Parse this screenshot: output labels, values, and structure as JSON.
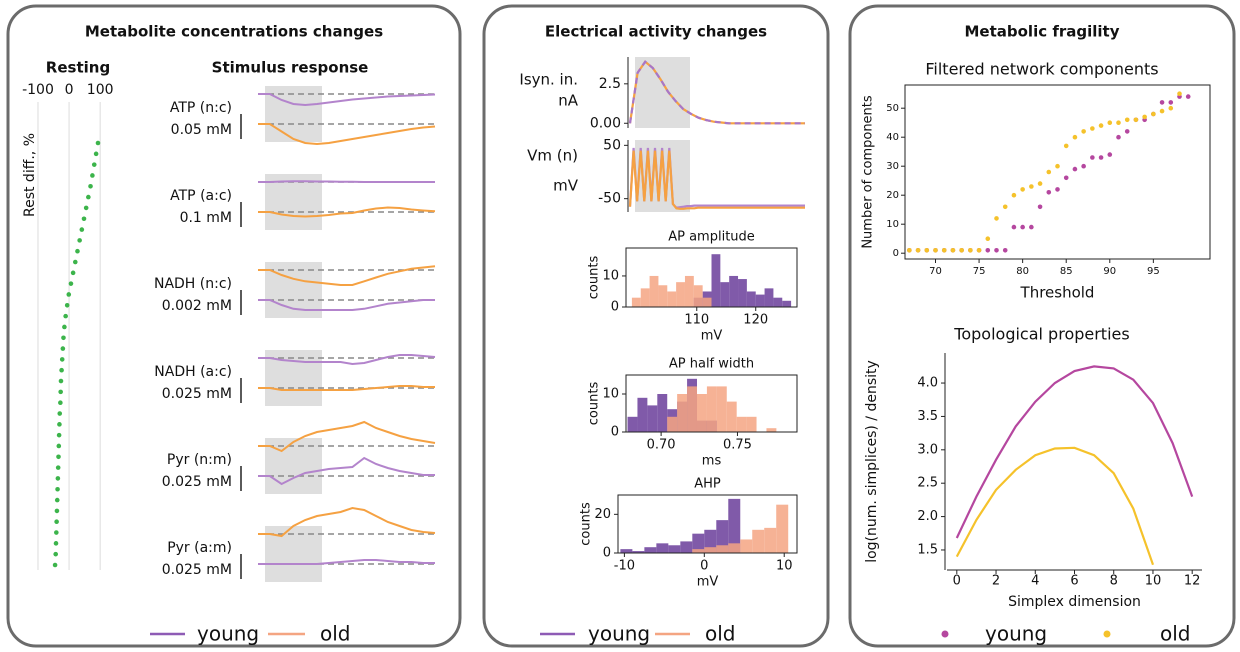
{
  "panels": [
    {
      "title": "Metabolite concentrations changes",
      "subtitle": "Stimulus response",
      "legend": [
        {
          "name": "young",
          "color": "#8e5bb5"
        },
        {
          "name": "old",
          "color": "#f4a582"
        }
      ]
    },
    {
      "title": "Electrical activity changes",
      "legend": [
        {
          "name": "young",
          "color": "#8e5bb5"
        },
        {
          "name": "old",
          "color": "#f4a582"
        }
      ]
    },
    {
      "title": "Metabolic fragility",
      "legend": [
        {
          "name": "young",
          "color": "#b5479f"
        },
        {
          "name": "old",
          "color": "#f5c22b"
        }
      ]
    }
  ],
  "chart_data": [
    {
      "type": "dot",
      "title": "Resting",
      "ylabel": "Rest diff., %",
      "color": "#3cb44b",
      "grid": true,
      "xlim": [
        -116,
        122
      ],
      "xticks": [
        -100,
        0,
        100
      ],
      "values": [
        93,
        87,
        81,
        75,
        69,
        62,
        55,
        48,
        41,
        34,
        27,
        20,
        13,
        6,
        -1,
        -6,
        -11,
        -15,
        -18,
        -20,
        -22,
        -24,
        -26,
        -27,
        -28,
        -30,
        -31,
        -32,
        -33,
        -34,
        -35,
        -36,
        -37,
        -38,
        -39,
        -40,
        -41,
        -42,
        -43,
        -45
      ]
    },
    {
      "type": "trace",
      "label": "ATP (n:c)",
      "scalebar": {
        "value": 0.05,
        "label": "0.05 mM"
      },
      "series": [
        {
          "color": "#b384cc",
          "values": [
            0,
            0,
            -0.012,
            -0.02,
            -0.022,
            -0.02,
            -0.017,
            -0.014,
            -0.011,
            -0.009,
            -0.007,
            -0.005,
            -0.004,
            -0.003,
            -0.002,
            -0.001
          ]
        },
        {
          "color": "#f5a142",
          "values": [
            0,
            0,
            -0.015,
            -0.03,
            -0.038,
            -0.04,
            -0.038,
            -0.034,
            -0.03,
            -0.026,
            -0.022,
            -0.018,
            -0.014,
            -0.01,
            -0.007,
            -0.005
          ]
        }
      ]
    },
    {
      "type": "trace",
      "label": "ATP (a:c)",
      "scalebar": {
        "value": 0.1,
        "label": "0.1 mM"
      },
      "series": [
        {
          "color": "#b384cc",
          "values": [
            0,
            0,
            0.002,
            0.003,
            0.003,
            0.002,
            0.002,
            0.001,
            0.001,
            0,
            0,
            0,
            0,
            0,
            0,
            0
          ]
        },
        {
          "color": "#f5a142",
          "values": [
            0,
            0,
            -0.01,
            -0.016,
            -0.018,
            -0.016,
            -0.012,
            -0.006,
            -0.004,
            0.006,
            0.014,
            0.018,
            0.016,
            0.01,
            0.006,
            0.003
          ]
        }
      ]
    },
    {
      "type": "trace",
      "label": "NADH (n:c)",
      "scalebar": {
        "value": 0.002,
        "label": "0.002 mM"
      },
      "series": [
        {
          "color": "#f5a142",
          "values": [
            0,
            0,
            -0.0004,
            -0.0007,
            -0.0009,
            -0.001,
            -0.0011,
            -0.0012,
            -0.0012,
            -0.0009,
            -0.0006,
            -0.0003,
            -0.0001,
            0.0001,
            0.0002,
            0.0003
          ]
        },
        {
          "color": "#b384cc",
          "values": [
            0,
            0,
            -0.0004,
            -0.0007,
            -0.0008,
            -0.0008,
            -0.0008,
            -0.0008,
            -0.0008,
            -0.0007,
            -0.0005,
            -0.0003,
            -0.0002,
            -0.0001,
            0,
            0
          ]
        }
      ]
    },
    {
      "type": "trace",
      "label": "NADH (a:c)",
      "scalebar": {
        "value": 0.025,
        "label": "0.025 mM"
      },
      "series": [
        {
          "color": "#b384cc",
          "values": [
            0,
            0,
            -0.002,
            -0.003,
            -0.004,
            -0.004,
            -0.004,
            -0.004,
            -0.006,
            -0.005,
            -0.002,
            0.001,
            0.003,
            0.003,
            0.002,
            0.001
          ]
        },
        {
          "color": "#f5a142",
          "values": [
            0,
            0,
            -0.002,
            -0.002,
            -0.002,
            -0.002,
            -0.002,
            -0.002,
            -0.002,
            -0.001,
            0,
            0.001,
            0.002,
            0.002,
            0.001,
            0.001
          ]
        }
      ]
    },
    {
      "type": "trace",
      "label": "Pyr (n:m)",
      "scalebar": {
        "value": 0.025,
        "label": "0.025 mM"
      },
      "series": [
        {
          "color": "#f5a142",
          "values": [
            0,
            0,
            -0.005,
            0.004,
            0.01,
            0.014,
            0.016,
            0.018,
            0.02,
            0.024,
            0.018,
            0.014,
            0.01,
            0.007,
            0.005,
            0.003
          ]
        },
        {
          "color": "#b384cc",
          "values": [
            0,
            0,
            -0.008,
            -0.002,
            0.003,
            0.005,
            0.007,
            0.008,
            0.009,
            0.018,
            0.012,
            0.008,
            0.005,
            0.003,
            0.001,
            0.001
          ]
        }
      ]
    },
    {
      "type": "trace",
      "label": "Pyr (a:m)",
      "scalebar": {
        "value": 0.025,
        "label": "0.025 mM"
      },
      "series": [
        {
          "color": "#f5a142",
          "values": [
            0,
            0,
            -0.002,
            0.008,
            0.014,
            0.018,
            0.02,
            0.022,
            0.026,
            0.024,
            0.018,
            0.012,
            0.008,
            0.004,
            0.002,
            0.001
          ]
        },
        {
          "color": "#b384cc",
          "values": [
            0,
            0,
            0,
            0,
            0,
            0,
            0.001,
            0.002,
            0.003,
            0.004,
            0.004,
            0.003,
            0.002,
            0.002,
            0.001,
            0.001
          ]
        }
      ]
    },
    {
      "type": "line",
      "ylabel": [
        "Isyn. in.",
        "nA"
      ],
      "ylim": [
        -0.3,
        4.2
      ],
      "yticks": [
        {
          "value": 0,
          "label": "0.00"
        },
        2.5
      ],
      "series": [
        {
          "color": "#f5a142",
          "values": [
            0,
            3.2,
            3.9,
            3.5,
            2.8,
            2.0,
            1.4,
            0.9,
            0.6,
            0.35,
            0.2,
            0.1,
            0.05,
            0,
            0,
            0,
            0,
            0,
            0,
            0,
            0,
            0,
            0,
            0
          ]
        },
        {
          "color": "#a876c8",
          "dash": true,
          "values": [
            0,
            3.2,
            3.9,
            3.5,
            2.8,
            2.0,
            1.4,
            0.9,
            0.6,
            0.35,
            0.2,
            0.1,
            0.05,
            0,
            0,
            0,
            0,
            0,
            0,
            0,
            0,
            0,
            0,
            0
          ]
        }
      ]
    },
    {
      "type": "line",
      "ylabel": [
        "Vm (n)",
        "mV"
      ],
      "ylim": [
        -75,
        60
      ],
      "yticks": [
        50,
        -50
      ],
      "series": [
        {
          "color": "#b384cc",
          "values": [
            -65,
            45,
            -55,
            45,
            -55,
            45,
            -55,
            45,
            -55,
            45,
            -55,
            45,
            -60,
            -67,
            -66,
            -65,
            -64,
            -64,
            -63,
            -63,
            -63,
            -63,
            -63,
            -63,
            -63,
            -63,
            -63,
            -63,
            -63,
            -63,
            -63,
            -63,
            -63,
            -63,
            -63,
            -63,
            -63,
            -63,
            -63,
            -63,
            -63,
            -63,
            -63,
            -63,
            -63,
            -63,
            -63,
            -63,
            -63,
            -63
          ]
        },
        {
          "color": "#f5a142",
          "values": [
            -65,
            40,
            -55,
            40,
            -55,
            40,
            -55,
            40,
            -55,
            40,
            -55,
            40,
            -60,
            -68,
            -69,
            -69,
            -68,
            -68,
            -68,
            -67,
            -67,
            -67,
            -67,
            -67,
            -67,
            -67,
            -67,
            -67,
            -67,
            -67,
            -67,
            -67,
            -67,
            -67,
            -67,
            -67,
            -67,
            -67,
            -67,
            -67,
            -67,
            -67,
            -67,
            -67,
            -67,
            -67,
            -67,
            -67,
            -67,
            -67
          ]
        }
      ]
    },
    {
      "type": "histogram",
      "title": "AP amplitude",
      "xlabel": "mV",
      "ylabel": "counts",
      "bins": [
        99,
        100.5,
        102,
        103.5,
        105,
        106.5,
        108,
        109.5,
        111,
        112.5,
        114,
        115.5,
        117,
        118.5,
        120,
        121.5,
        123,
        124.5,
        126
      ],
      "xlim": [
        98,
        127
      ],
      "xticks": [
        110,
        120
      ],
      "ylim": [
        0,
        19
      ],
      "yticks": [
        0,
        10
      ],
      "series": [
        {
          "color": "#6a3d9a",
          "values": [
            0,
            0,
            0,
            0,
            0,
            0,
            0,
            3,
            5,
            17,
            8,
            10,
            9,
            5,
            4,
            6,
            3,
            2
          ]
        },
        {
          "color": "#f4a582",
          "values": [
            3,
            6,
            10,
            7,
            5,
            8,
            10,
            7,
            3,
            0,
            0,
            0,
            0,
            0,
            0,
            0,
            0,
            0
          ]
        }
      ]
    },
    {
      "type": "histogram",
      "title": "AP half width",
      "xlabel": "ms",
      "ylabel": "counts",
      "bins": [
        0.678,
        0.6845,
        0.691,
        0.6975,
        0.704,
        0.7105,
        0.717,
        0.7235,
        0.73,
        0.7365,
        0.743,
        0.7495,
        0.756,
        0.7625,
        0.769,
        0.7755,
        0.782
      ],
      "xlim": [
        0.677,
        0.789
      ],
      "xticks": [
        {
          "value": 0.7,
          "label": "0.70"
        },
        0.75
      ],
      "ylim": [
        0,
        15
      ],
      "yticks": [
        0,
        10
      ],
      "series": [
        {
          "color": "#6a3d9a",
          "values": [
            4,
            9,
            7,
            10,
            6,
            8,
            14,
            3,
            3,
            0,
            0,
            0,
            0,
            0,
            0,
            0
          ]
        },
        {
          "color": "#f4a582",
          "values": [
            0,
            0,
            0,
            0,
            4,
            10,
            12,
            10,
            12,
            12,
            8,
            4,
            4,
            0,
            1,
            0
          ]
        }
      ]
    },
    {
      "type": "histogram",
      "title": "AHP",
      "xlabel": "mV",
      "ylabel": "counts",
      "bins": [
        -10.5,
        -9,
        -7.5,
        -6,
        -4.5,
        -3,
        -1.5,
        0,
        1.5,
        3,
        4.5,
        6,
        7.5,
        9,
        10.5
      ],
      "xlim": [
        -10.8,
        11.6
      ],
      "xticks": [
        -10,
        0,
        10
      ],
      "ylim": [
        0,
        30
      ],
      "yticks": [
        0,
        20
      ],
      "series": [
        {
          "color": "#6a3d9a",
          "values": [
            2,
            1,
            3,
            5,
            4,
            6,
            10,
            12,
            17,
            28,
            0,
            0,
            0,
            0
          ]
        },
        {
          "color": "#f4a582",
          "values": [
            0,
            0,
            0,
            0,
            0,
            0,
            2,
            3,
            4,
            5,
            7,
            12,
            13,
            25
          ]
        }
      ]
    },
    {
      "type": "scatter",
      "title": "Filtered network components",
      "xlabel": "Threshold",
      "ylabel": "Number of components",
      "x": [
        67,
        68,
        69,
        70,
        71,
        72,
        73,
        74,
        75,
        76,
        77,
        78,
        79,
        80,
        81,
        82,
        83,
        84,
        85,
        86,
        87,
        88,
        89,
        90,
        91,
        92,
        93,
        94,
        95,
        96,
        97,
        98,
        99,
        100
      ],
      "xlim": [
        66.5,
        101.5
      ],
      "xticks": [
        70,
        75,
        80,
        85,
        90,
        95
      ],
      "ylim": [
        -2,
        58
      ],
      "yticks": [
        0,
        10,
        20,
        30,
        40,
        50
      ],
      "series": [
        {
          "color": "#b5479f",
          "values": [
            1,
            1,
            1,
            1,
            1,
            1,
            1,
            1,
            1,
            1,
            1,
            1,
            9,
            9,
            9,
            16,
            21,
            22,
            26,
            29,
            30,
            33,
            33,
            34,
            40,
            42,
            46,
            46,
            48,
            52,
            52,
            54,
            54,
            null
          ]
        },
        {
          "color": "#f5c22b",
          "values": [
            1,
            1,
            1,
            1,
            1,
            1,
            1,
            1,
            1,
            5,
            12,
            16,
            20,
            22,
            23,
            24,
            28,
            30,
            37,
            40,
            42,
            43,
            44,
            45,
            45,
            46,
            46,
            47,
            48,
            49,
            50,
            55,
            null,
            null
          ]
        }
      ]
    },
    {
      "type": "line",
      "title": "Topological properties",
      "xlabel": "Simplex dimension",
      "ylabel": "log(num. simplices) / density",
      "x": [
        0,
        1,
        2,
        3,
        4,
        5,
        6,
        7,
        8,
        9,
        10,
        11,
        12
      ],
      "xlim": [
        -0.5,
        12.5
      ],
      "xticks": [
        0,
        2,
        4,
        6,
        8,
        10,
        12
      ],
      "ylim": [
        1.2,
        4.45
      ],
      "yticks": [
        1.5,
        {
          "value": 2,
          "label": "2.0"
        },
        2.5,
        {
          "value": 3,
          "label": "3.0"
        },
        3.5,
        {
          "value": 4,
          "label": "4.0"
        }
      ],
      "series": [
        {
          "color": "#b5479f",
          "values": [
            1.68,
            2.3,
            2.85,
            3.35,
            3.72,
            4.0,
            4.18,
            4.25,
            4.22,
            4.05,
            3.7,
            3.1,
            2.3
          ]
        },
        {
          "color": "#f5c22b",
          "values": [
            1.4,
            1.95,
            2.4,
            2.7,
            2.92,
            3.02,
            3.03,
            2.92,
            2.65,
            2.12,
            1.28,
            null,
            null
          ]
        }
      ]
    }
  ]
}
